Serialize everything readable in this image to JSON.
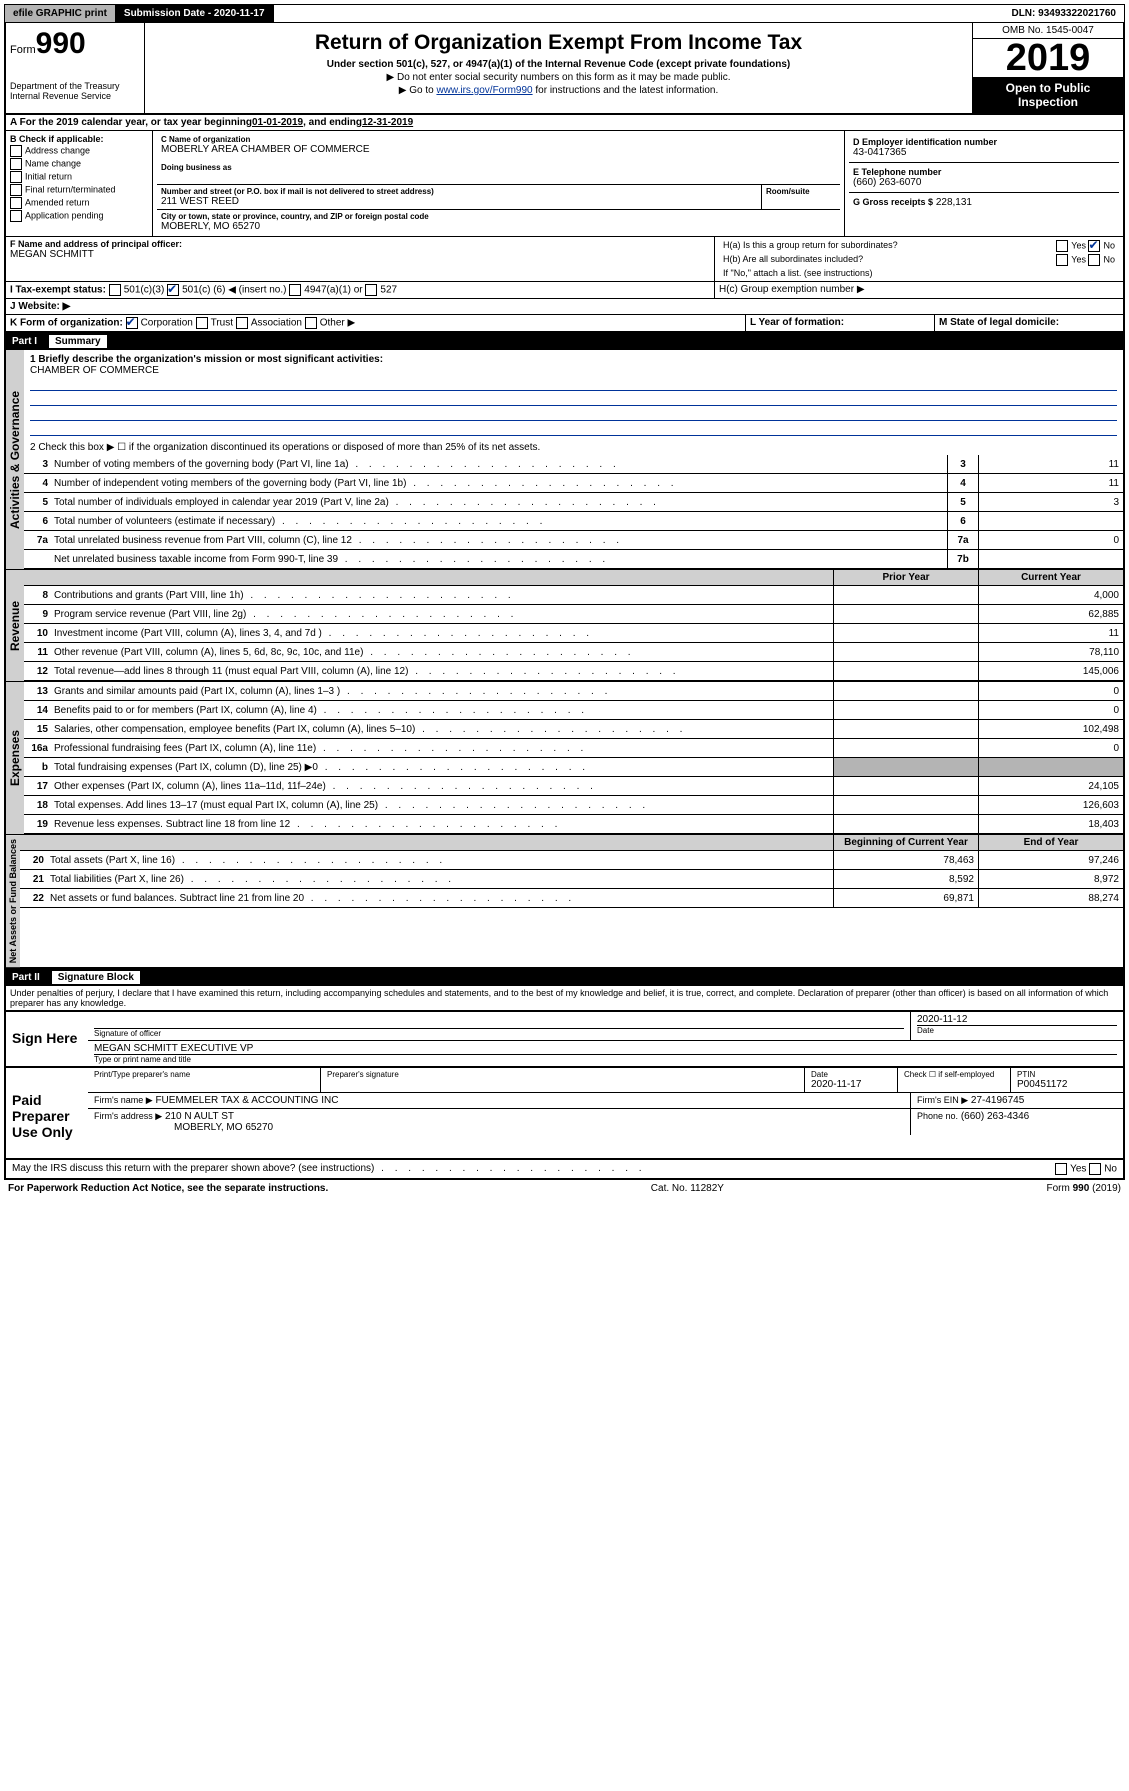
{
  "topbar": {
    "efile": "efile GRAPHIC print",
    "submission": "Submission Date - 2020-11-17",
    "dln": "DLN: 93493322021760"
  },
  "header": {
    "form_prefix": "Form",
    "form_num": "990",
    "dept1": "Department of the Treasury",
    "dept2": "Internal Revenue Service",
    "title": "Return of Organization Exempt From Income Tax",
    "sub": "Under section 501(c), 527, or 4947(a)(1) of the Internal Revenue Code (except private foundations)",
    "note1": "▶ Do not enter social security numbers on this form as it may be made public.",
    "note2_pre": "▶ Go to ",
    "note2_link": "www.irs.gov/Form990",
    "note2_post": " for instructions and the latest information.",
    "omb": "OMB No. 1545-0047",
    "year": "2019",
    "open": "Open to Public Inspection"
  },
  "period": {
    "text_a": "A For the 2019 calendar year, or tax year beginning ",
    "begin": "01-01-2019",
    "mid": " , and ending ",
    "end": "12-31-2019"
  },
  "box_b": {
    "title": "B Check if applicable:",
    "items": [
      "Address change",
      "Name change",
      "Initial return",
      "Final return/terminated",
      "Amended return",
      "Application pending"
    ]
  },
  "box_c": {
    "label": "C Name of organization",
    "org": "MOBERLY AREA CHAMBER OF COMMERCE",
    "dba_label": "Doing business as",
    "addr_label": "Number and street (or P.O. box if mail is not delivered to street address)",
    "room_label": "Room/suite",
    "addr": "211 WEST REED",
    "city_label": "City or town, state or province, country, and ZIP or foreign postal code",
    "city": "MOBERLY, MO  65270"
  },
  "box_d": {
    "label": "D Employer identification number",
    "value": "43-0417365"
  },
  "box_e": {
    "label": "E Telephone number",
    "value": "(660) 263-6070"
  },
  "box_g": {
    "label": "G Gross receipts $",
    "value": "228,131"
  },
  "box_f": {
    "label": "F Name and address of principal officer:",
    "name": "MEGAN SCHMITT"
  },
  "box_h": {
    "ha": "H(a) Is this a group return for subordinates?",
    "hb": "H(b) Are all subordinates included?",
    "hb_note": "If \"No,\" attach a list. (see instructions)",
    "hc": "H(c) Group exemption number ▶",
    "yes": "Yes",
    "no": "No"
  },
  "box_i": {
    "label": "I Tax-exempt status:",
    "opt1": "501(c)(3)",
    "opt2_pre": "501(c) (",
    "opt2_num": "6",
    "opt2_post": ") ◀ (insert no.)",
    "opt3": "4947(a)(1) or",
    "opt4": "527"
  },
  "box_j": {
    "label": "J Website: ▶"
  },
  "box_k": {
    "label": "K Form of organization:",
    "opts": [
      "Corporation",
      "Trust",
      "Association",
      "Other ▶"
    ]
  },
  "box_l": {
    "label": "L Year of formation:"
  },
  "box_m": {
    "label": "M State of legal domicile:"
  },
  "part1": {
    "num": "Part I",
    "title": "Summary",
    "line1_label": "1 Briefly describe the organization's mission or most significant activities:",
    "line1_value": "CHAMBER OF COMMERCE",
    "line2": "2   Check this box ▶ ☐ if the organization discontinued its operations or disposed of more than 25% of its net assets.",
    "lines_gov": [
      {
        "n": "3",
        "d": "Number of voting members of the governing body (Part VI, line 1a)",
        "box": "3",
        "v": "11"
      },
      {
        "n": "4",
        "d": "Number of independent voting members of the governing body (Part VI, line 1b)",
        "box": "4",
        "v": "11"
      },
      {
        "n": "5",
        "d": "Total number of individuals employed in calendar year 2019 (Part V, line 2a)",
        "box": "5",
        "v": "3"
      },
      {
        "n": "6",
        "d": "Total number of volunteers (estimate if necessary)",
        "box": "6",
        "v": ""
      },
      {
        "n": "7a",
        "d": "Total unrelated business revenue from Part VIII, column (C), line 12",
        "box": "7a",
        "v": "0"
      },
      {
        "n": "",
        "d": "Net unrelated business taxable income from Form 990-T, line 39",
        "box": "7b",
        "v": ""
      }
    ],
    "col_prior": "Prior Year",
    "col_current": "Current Year",
    "lines_rev": [
      {
        "n": "8",
        "d": "Contributions and grants (Part VIII, line 1h)",
        "p": "",
        "c": "4,000"
      },
      {
        "n": "9",
        "d": "Program service revenue (Part VIII, line 2g)",
        "p": "",
        "c": "62,885"
      },
      {
        "n": "10",
        "d": "Investment income (Part VIII, column (A), lines 3, 4, and 7d )",
        "p": "",
        "c": "11"
      },
      {
        "n": "11",
        "d": "Other revenue (Part VIII, column (A), lines 5, 6d, 8c, 9c, 10c, and 11e)",
        "p": "",
        "c": "78,110"
      },
      {
        "n": "12",
        "d": "Total revenue—add lines 8 through 11 (must equal Part VIII, column (A), line 12)",
        "p": "",
        "c": "145,006"
      }
    ],
    "lines_exp": [
      {
        "n": "13",
        "d": "Grants and similar amounts paid (Part IX, column (A), lines 1–3 )",
        "p": "",
        "c": "0"
      },
      {
        "n": "14",
        "d": "Benefits paid to or for members (Part IX, column (A), line 4)",
        "p": "",
        "c": "0"
      },
      {
        "n": "15",
        "d": "Salaries, other compensation, employee benefits (Part IX, column (A), lines 5–10)",
        "p": "",
        "c": "102,498"
      },
      {
        "n": "16a",
        "d": "Professional fundraising fees (Part IX, column (A), line 11e)",
        "p": "",
        "c": "0"
      },
      {
        "n": "b",
        "d": "Total fundraising expenses (Part IX, column (D), line 25) ▶0",
        "p": "grey",
        "c": "grey"
      },
      {
        "n": "17",
        "d": "Other expenses (Part IX, column (A), lines 11a–11d, 11f–24e)",
        "p": "",
        "c": "24,105"
      },
      {
        "n": "18",
        "d": "Total expenses. Add lines 13–17 (must equal Part IX, column (A), line 25)",
        "p": "",
        "c": "126,603"
      },
      {
        "n": "19",
        "d": "Revenue less expenses. Subtract line 18 from line 12",
        "p": "",
        "c": "18,403"
      }
    ],
    "col_begin": "Beginning of Current Year",
    "col_end": "End of Year",
    "lines_net": [
      {
        "n": "20",
        "d": "Total assets (Part X, line 16)",
        "p": "78,463",
        "c": "97,246"
      },
      {
        "n": "21",
        "d": "Total liabilities (Part X, line 26)",
        "p": "8,592",
        "c": "8,972"
      },
      {
        "n": "22",
        "d": "Net assets or fund balances. Subtract line 21 from line 20",
        "p": "69,871",
        "c": "88,274"
      }
    ]
  },
  "vlabels": {
    "gov": "Activities & Governance",
    "rev": "Revenue",
    "exp": "Expenses",
    "net": "Net Assets or Fund Balances"
  },
  "part2": {
    "num": "Part II",
    "title": "Signature Block",
    "perjury": "Under penalties of perjury, I declare that I have examined this return, including accompanying schedules and statements, and to the best of my knowledge and belief, it is true, correct, and complete. Declaration of preparer (other than officer) is based on all information of which preparer has any knowledge.",
    "sign_here": "Sign Here",
    "sig_officer": "Signature of officer",
    "date_label": "Date",
    "sig_date": "2020-11-12",
    "name_title": "MEGAN SCHMITT EXECUTIVE VP",
    "type_name": "Type or print name and title",
    "paid": "Paid Preparer Use Only",
    "prep_name_label": "Print/Type preparer's name",
    "prep_sig_label": "Preparer's signature",
    "prep_date_label": "Date",
    "prep_date": "2020-11-17",
    "check_self": "Check ☐ if self-employed",
    "ptin_label": "PTIN",
    "ptin": "P00451172",
    "firm_name_label": "Firm's name    ▶",
    "firm_name": "FUEMMELER TAX & ACCOUNTING INC",
    "firm_ein_label": "Firm's EIN ▶",
    "firm_ein": "27-4196745",
    "firm_addr_label": "Firm's address ▶",
    "firm_addr": "210 N AULT ST",
    "firm_city": "MOBERLY, MO  65270",
    "phone_label": "Phone no.",
    "phone": "(660) 263-4346",
    "discuss": "May the IRS discuss this return with the preparer shown above? (see instructions)",
    "yes": "Yes",
    "no": "No"
  },
  "footer": {
    "left": "For Paperwork Reduction Act Notice, see the separate instructions.",
    "mid": "Cat. No. 11282Y",
    "right": "Form 990 (2019)"
  }
}
